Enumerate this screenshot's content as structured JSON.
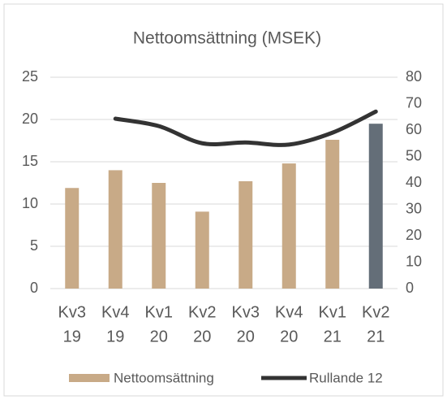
{
  "chart_data": {
    "type": "bar_line",
    "title": "Nettoomsättning (MSEK)",
    "categories": [
      [
        "Kv3",
        "19"
      ],
      [
        "Kv4",
        "19"
      ],
      [
        "Kv1",
        "20"
      ],
      [
        "Kv2",
        "20"
      ],
      [
        "Kv3",
        "20"
      ],
      [
        "Kv4",
        "20"
      ],
      [
        "Kv1",
        "21"
      ],
      [
        "Kv2",
        "21"
      ]
    ],
    "series": [
      {
        "name": "Nettoomsättning",
        "type": "bar",
        "color": "#c8aa87",
        "colors": [
          "#c8aa87",
          "#c8aa87",
          "#c8aa87",
          "#c8aa87",
          "#c8aa87",
          "#c8aa87",
          "#c8aa87",
          "#646e78"
        ],
        "values": [
          11.9,
          14.0,
          12.5,
          9.1,
          12.7,
          14.8,
          17.6,
          19.5
        ]
      },
      {
        "name": "Rullande 12",
        "type": "line",
        "axis": "y2",
        "color": "#333333",
        "values": [
          null,
          64.3,
          61.5,
          55.0,
          55.3,
          54.5,
          59.0,
          67.0
        ]
      }
    ],
    "ylim": [
      0,
      25
    ],
    "yticks": [
      0,
      5,
      10,
      15,
      20,
      25
    ],
    "y2lim": [
      0,
      80
    ],
    "y2ticks": [
      0,
      10,
      20,
      30,
      40,
      50,
      60,
      70,
      80
    ],
    "grid": true,
    "legend": "bottom"
  }
}
